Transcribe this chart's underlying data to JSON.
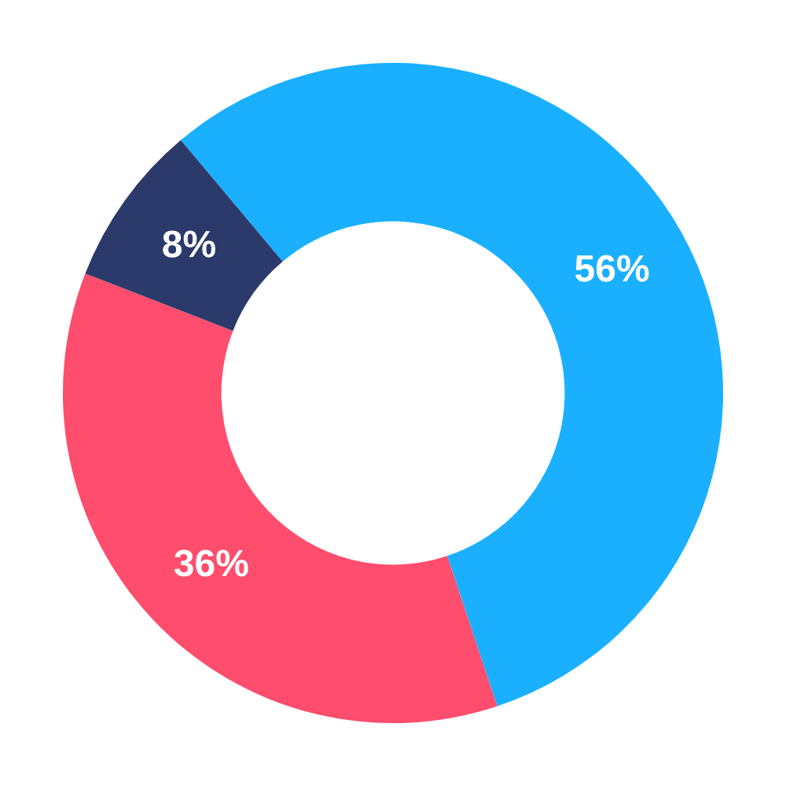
{
  "chart_data": {
    "type": "donut",
    "categories": [
      null,
      null,
      null
    ],
    "values": [
      56,
      36,
      8
    ],
    "colors": [
      "#1ab0ff",
      "#ff4d6d",
      "#2b3a6b"
    ],
    "value_labels": [
      "56%",
      "36%",
      "8%"
    ]
  }
}
